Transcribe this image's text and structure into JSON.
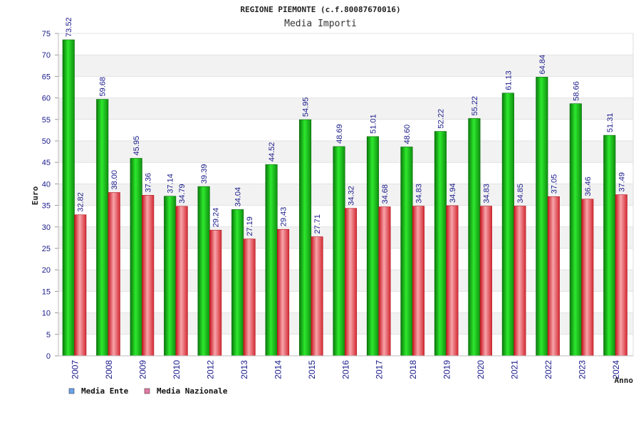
{
  "chart_data": {
    "type": "bar",
    "title": "REGIONE PIEMONTE (c.f.80087670016)",
    "subtitle": "Media Importi",
    "xlabel": "Anno",
    "ylabel": "Euro",
    "ylim": [
      0,
      75
    ],
    "ytick_step": 5,
    "grid": true,
    "legend_position": "bottom-left",
    "categories": [
      "2007",
      "2008",
      "2009",
      "2010",
      "2012",
      "2013",
      "2014",
      "2015",
      "2016",
      "2017",
      "2018",
      "2019",
      "2020",
      "2021",
      "2022",
      "2023",
      "2024"
    ],
    "series": [
      {
        "name": "Media Ente",
        "legend_color": "#6aa5e8",
        "color": "#1cb81c",
        "values": [
          73.52,
          59.68,
          45.95,
          37.14,
          39.39,
          34.04,
          44.52,
          54.95,
          48.69,
          51.01,
          48.6,
          52.22,
          55.22,
          61.13,
          64.84,
          58.66,
          51.31
        ],
        "labels": [
          "73.52",
          "59.68",
          "45.95",
          "37.14",
          "39.39",
          "34.04",
          "44.52",
          "54.95",
          "48.69",
          "51.01",
          "48.60",
          "52.22",
          "55.22",
          "61.13",
          "64.84",
          "58.66",
          "51.31"
        ]
      },
      {
        "name": "Media Nazionale",
        "legend_color": "#e07aa8",
        "color": "#e8484f",
        "values": [
          32.82,
          38.0,
          37.36,
          34.79,
          29.24,
          27.19,
          29.43,
          27.71,
          34.32,
          34.68,
          34.83,
          34.94,
          34.83,
          34.85,
          37.05,
          36.46,
          37.49
        ],
        "labels": [
          "32.82",
          "38.00",
          "37.36",
          "34.79",
          "29.24",
          "27.19",
          "29.43",
          "27.71",
          "34.32",
          "34.68",
          "34.83",
          "34.94",
          "34.83",
          "34.85",
          "37.05",
          "36.46",
          "37.49"
        ]
      }
    ]
  }
}
